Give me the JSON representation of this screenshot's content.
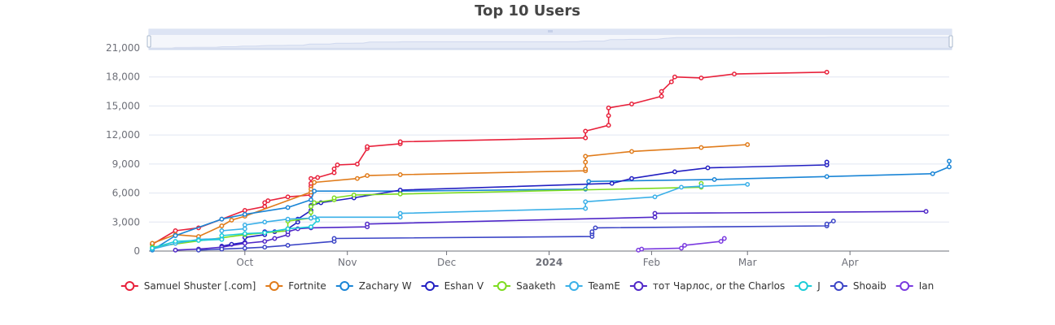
{
  "chart_data": {
    "type": "line",
    "title": "Top 10 Users",
    "xlabel": "",
    "ylabel": "",
    "ylim": [
      0,
      21000
    ],
    "yticks": [
      0,
      3000,
      6000,
      9000,
      12000,
      15000,
      18000,
      21000
    ],
    "ytick_labels": [
      "0",
      "3,000",
      "6,000",
      "9,000",
      "12,000",
      "15,000",
      "18,000",
      "21,000"
    ],
    "xlim": [
      "2023-09-02",
      "2024-05-01"
    ],
    "xticks": [
      {
        "date": "2023-10-01",
        "label": "Oct",
        "bold": false
      },
      {
        "date": "2023-11-01",
        "label": "Nov",
        "bold": false
      },
      {
        "date": "2023-12-01",
        "label": "Dec",
        "bold": false
      },
      {
        "date": "2024-01-01",
        "label": "2024",
        "bold": true
      },
      {
        "date": "2024-02-01",
        "label": "Feb",
        "bold": false
      },
      {
        "date": "2024-03-01",
        "label": "Mar",
        "bold": false
      },
      {
        "date": "2024-04-01",
        "label": "Apr",
        "bold": false
      }
    ],
    "grid": true,
    "legend_position": "bottom",
    "data_zoom": true,
    "series": [
      {
        "name": "Samuel Shuster [.com]",
        "color": "#e8213b",
        "points": [
          [
            "2023-09-03",
            700
          ],
          [
            "2023-09-10",
            2100
          ],
          [
            "2023-09-17",
            2400
          ],
          [
            "2023-09-24",
            3300
          ],
          [
            "2023-10-01",
            4200
          ],
          [
            "2023-10-07",
            4600
          ],
          [
            "2023-10-07",
            5000
          ],
          [
            "2023-10-08",
            5200
          ],
          [
            "2023-10-14",
            5600
          ],
          [
            "2023-10-21",
            5800
          ],
          [
            "2023-10-21",
            6700
          ],
          [
            "2023-10-21",
            7000
          ],
          [
            "2023-10-21",
            7500
          ],
          [
            "2023-10-23",
            7600
          ],
          [
            "2023-10-28",
            8100
          ],
          [
            "2023-10-28",
            8500
          ],
          [
            "2023-10-29",
            8900
          ],
          [
            "2023-11-04",
            9000
          ],
          [
            "2023-11-07",
            10600
          ],
          [
            "2023-11-07",
            10800
          ],
          [
            "2023-11-17",
            11100
          ],
          [
            "2023-11-17",
            11300
          ],
          [
            "2024-01-12",
            11700
          ],
          [
            "2024-01-12",
            12400
          ],
          [
            "2024-01-19",
            13000
          ],
          [
            "2024-01-19",
            14000
          ],
          [
            "2024-01-19",
            14800
          ],
          [
            "2024-01-26",
            15200
          ],
          [
            "2024-02-04",
            16000
          ],
          [
            "2024-02-04",
            16500
          ],
          [
            "2024-02-07",
            17500
          ],
          [
            "2024-02-08",
            18000
          ],
          [
            "2024-02-16",
            17900
          ],
          [
            "2024-02-26",
            18300
          ],
          [
            "2024-03-25",
            18500
          ]
        ]
      },
      {
        "name": "Fortnite",
        "color": "#e07b1a",
        "points": [
          [
            "2023-09-03",
            800
          ],
          [
            "2023-09-10",
            1700
          ],
          [
            "2023-09-17",
            1500
          ],
          [
            "2023-09-24",
            2600
          ],
          [
            "2023-09-27",
            3200
          ],
          [
            "2023-10-01",
            3600
          ],
          [
            "2023-10-21",
            6100
          ],
          [
            "2023-10-21",
            6400
          ],
          [
            "2023-10-22",
            7100
          ],
          [
            "2023-11-04",
            7500
          ],
          [
            "2023-11-07",
            7800
          ],
          [
            "2023-11-17",
            7900
          ],
          [
            "2024-01-12",
            8300
          ],
          [
            "2024-01-12",
            8500
          ],
          [
            "2024-01-12",
            9200
          ],
          [
            "2024-01-12",
            9800
          ],
          [
            "2024-01-26",
            10300
          ],
          [
            "2024-02-16",
            10700
          ],
          [
            "2024-03-01",
            11000
          ]
        ]
      },
      {
        "name": "Zachary W",
        "color": "#1a85d6",
        "points": [
          [
            "2023-09-03",
            100
          ],
          [
            "2023-09-10",
            1600
          ],
          [
            "2023-09-24",
            3300
          ],
          [
            "2023-10-01",
            3800
          ],
          [
            "2023-10-14",
            4500
          ],
          [
            "2023-10-21",
            5300
          ],
          [
            "2023-10-22",
            6200
          ],
          [
            "2023-11-17",
            6200
          ],
          [
            "2024-01-12",
            6400
          ],
          [
            "2024-01-13",
            7200
          ],
          [
            "2024-02-20",
            7400
          ],
          [
            "2024-03-25",
            7700
          ],
          [
            "2024-04-26",
            8000
          ],
          [
            "2024-05-01",
            8700
          ],
          [
            "2024-05-01",
            9300
          ]
        ]
      },
      {
        "name": "Eshan V",
        "color": "#2320c2",
        "points": [
          [
            "2023-09-24",
            500
          ],
          [
            "2023-09-27",
            700
          ],
          [
            "2023-10-01",
            900
          ],
          [
            "2023-10-01",
            1400
          ],
          [
            "2023-10-07",
            1700
          ],
          [
            "2023-10-07",
            2000
          ],
          [
            "2023-10-10",
            2000
          ],
          [
            "2023-10-14",
            2100
          ],
          [
            "2023-10-14",
            2300
          ],
          [
            "2023-10-17",
            3000
          ],
          [
            "2023-10-17",
            3300
          ],
          [
            "2023-10-21",
            4200
          ],
          [
            "2023-10-21",
            4700
          ],
          [
            "2023-10-24",
            5000
          ],
          [
            "2023-11-03",
            5500
          ],
          [
            "2023-11-17",
            6300
          ],
          [
            "2024-01-20",
            7000
          ],
          [
            "2024-01-26",
            7500
          ],
          [
            "2024-02-08",
            8200
          ],
          [
            "2024-02-18",
            8600
          ],
          [
            "2024-03-25",
            8900
          ],
          [
            "2024-03-25",
            9200
          ]
        ]
      },
      {
        "name": "Saaketh",
        "color": "#7ddc1f",
        "points": [
          [
            "2023-09-03",
            400
          ],
          [
            "2023-10-01",
            1700
          ],
          [
            "2023-10-14",
            2100
          ],
          [
            "2023-10-14",
            3100
          ],
          [
            "2023-10-21",
            3400
          ],
          [
            "2023-10-21",
            4000
          ],
          [
            "2023-10-21",
            4600
          ],
          [
            "2023-10-22",
            5000
          ],
          [
            "2023-10-28",
            5300
          ],
          [
            "2023-10-28",
            5500
          ],
          [
            "2023-11-03",
            5800
          ],
          [
            "2023-11-17",
            5900
          ],
          [
            "2024-02-16",
            6600
          ],
          [
            "2024-02-16",
            7000
          ]
        ]
      },
      {
        "name": "TeamE",
        "color": "#3bb0e8",
        "points": [
          [
            "2023-09-03",
            200
          ],
          [
            "2023-09-10",
            800
          ],
          [
            "2023-09-17",
            1200
          ],
          [
            "2023-09-24",
            1300
          ],
          [
            "2023-09-24",
            2100
          ],
          [
            "2023-10-01",
            2300
          ],
          [
            "2023-10-01",
            2700
          ],
          [
            "2023-10-07",
            3000
          ],
          [
            "2023-10-14",
            3300
          ],
          [
            "2023-10-21",
            3400
          ],
          [
            "2023-10-22",
            3500
          ],
          [
            "2023-11-17",
            3500
          ],
          [
            "2023-11-17",
            3900
          ],
          [
            "2024-01-12",
            4400
          ],
          [
            "2024-01-12",
            5100
          ],
          [
            "2024-02-02",
            5600
          ],
          [
            "2024-02-10",
            6600
          ],
          [
            "2024-02-16",
            6700
          ],
          [
            "2024-03-01",
            6900
          ]
        ]
      },
      {
        "name": "тот Чарлос, or the Charlos",
        "color": "#5028c8",
        "points": [
          [
            "2023-09-10",
            100
          ],
          [
            "2023-09-17",
            200
          ],
          [
            "2023-09-24",
            400
          ],
          [
            "2023-10-01",
            800
          ],
          [
            "2023-10-07",
            1000
          ],
          [
            "2023-10-10",
            1300
          ],
          [
            "2023-10-14",
            1700
          ],
          [
            "2023-10-14",
            2000
          ],
          [
            "2023-10-17",
            2300
          ],
          [
            "2023-10-21",
            2400
          ],
          [
            "2023-11-07",
            2500
          ],
          [
            "2023-11-07",
            2800
          ],
          [
            "2024-02-02",
            3500
          ],
          [
            "2024-02-02",
            3900
          ],
          [
            "2024-04-24",
            4100
          ]
        ]
      },
      {
        "name": "J",
        "color": "#1ccdd8",
        "points": [
          [
            "2023-09-03",
            300
          ],
          [
            "2023-09-10",
            1000
          ],
          [
            "2023-09-17",
            1100
          ],
          [
            "2023-09-24",
            1200
          ],
          [
            "2023-09-24",
            1600
          ],
          [
            "2023-10-01",
            1800
          ],
          [
            "2023-10-07",
            1900
          ],
          [
            "2023-10-14",
            2300
          ],
          [
            "2023-10-21",
            2500
          ],
          [
            "2023-10-23",
            3200
          ]
        ]
      },
      {
        "name": "Shoaib",
        "color": "#3b44c6",
        "points": [
          [
            "2023-09-17",
            100
          ],
          [
            "2023-09-24",
            200
          ],
          [
            "2023-10-01",
            300
          ],
          [
            "2023-10-07",
            400
          ],
          [
            "2023-10-14",
            600
          ],
          [
            "2023-10-28",
            1000
          ],
          [
            "2023-10-28",
            1300
          ],
          [
            "2024-01-14",
            1500
          ],
          [
            "2024-01-14",
            1800
          ],
          [
            "2024-01-14",
            2000
          ],
          [
            "2024-01-15",
            2400
          ],
          [
            "2024-03-25",
            2600
          ],
          [
            "2024-03-25",
            2800
          ],
          [
            "2024-03-27",
            3100
          ]
        ]
      },
      {
        "name": "Ian",
        "color": "#7a3ae0",
        "points": [
          [
            "2024-01-28",
            100
          ],
          [
            "2024-01-29",
            200
          ],
          [
            "2024-02-10",
            300
          ],
          [
            "2024-02-11",
            600
          ],
          [
            "2024-02-22",
            1000
          ],
          [
            "2024-02-23",
            1300
          ]
        ]
      }
    ]
  }
}
